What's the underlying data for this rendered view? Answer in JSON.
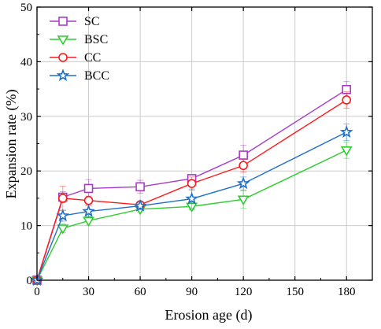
{
  "chart_data": {
    "type": "line",
    "title": "",
    "xlabel": "Erosion age (d)",
    "ylabel": "Expansion rate (%)",
    "xlim": [
      0,
      195
    ],
    "ylim": [
      0,
      50
    ],
    "xticks": [
      0,
      30,
      60,
      90,
      120,
      150,
      180
    ],
    "yticks": [
      0,
      10,
      20,
      30,
      40,
      50
    ],
    "grid": true,
    "legend_position": "top-left",
    "x": [
      0,
      15,
      30,
      60,
      90,
      120,
      180
    ],
    "series": [
      {
        "name": "SC",
        "color": "#a83cc6",
        "marker": "square",
        "values": [
          0,
          15.2,
          16.8,
          17.1,
          18.6,
          22.9,
          34.9
        ],
        "errors": [
          0,
          1.0,
          1.6,
          1.2,
          0.6,
          1.8,
          1.5
        ]
      },
      {
        "name": "BSC",
        "color": "#2ecc2e",
        "marker": "triangle-down",
        "values": [
          0,
          9.5,
          10.9,
          13.0,
          13.5,
          14.8,
          23.8
        ],
        "errors": [
          0,
          0.8,
          0.8,
          0.5,
          0.6,
          1.6,
          1.5
        ]
      },
      {
        "name": "CC",
        "color": "#ff1a1a",
        "marker": "circle",
        "values": [
          0,
          15.0,
          14.6,
          13.8,
          17.7,
          21.0,
          33.0
        ],
        "errors": [
          0,
          2.2,
          0.8,
          0.6,
          1.2,
          1.2,
          1.5
        ]
      },
      {
        "name": "BCC",
        "color": "#1e6fc8",
        "marker": "star",
        "values": [
          0,
          11.8,
          12.6,
          13.6,
          14.9,
          17.7,
          27.1
        ],
        "errors": [
          0,
          1.0,
          1.0,
          0.7,
          1.8,
          1.2,
          1.5
        ]
      }
    ]
  }
}
